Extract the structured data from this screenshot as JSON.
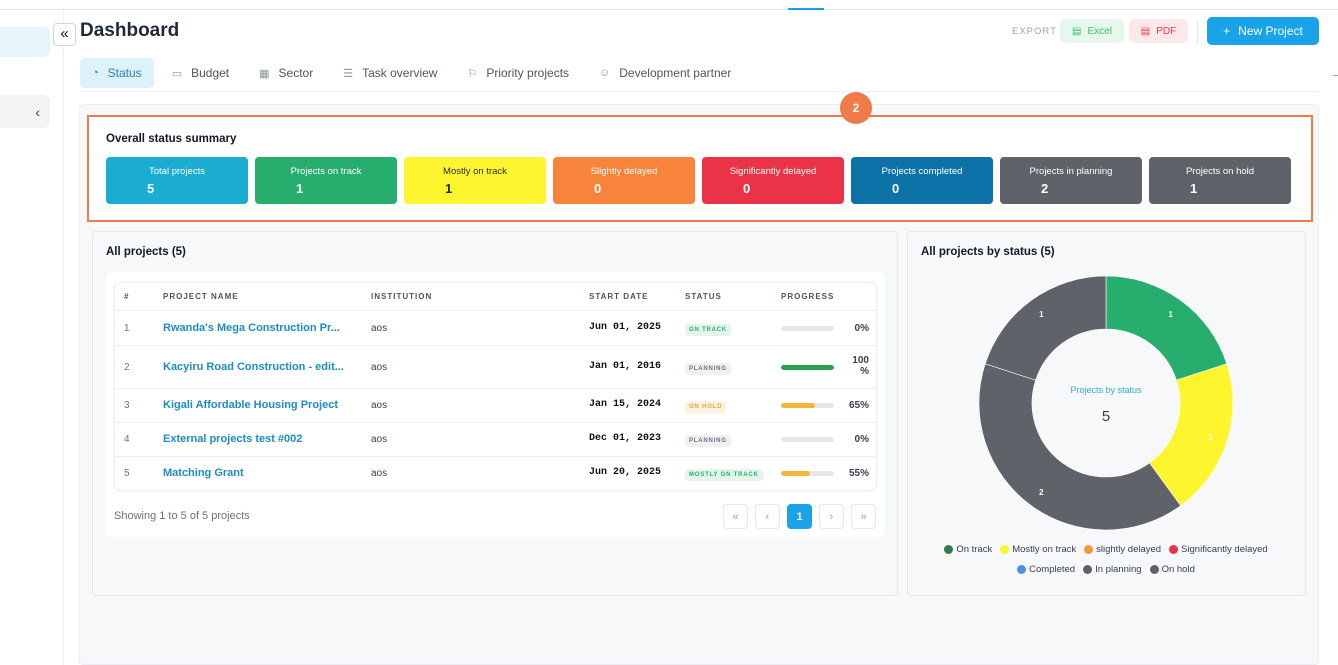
{
  "header": {
    "title": "Dashboard",
    "export_label": "EXPORT",
    "excel_label": "Excel",
    "pdf_label": "PDF",
    "new_project_label": "New Project",
    "collapse_icon": "double-chevron-left-icon"
  },
  "tabs": [
    {
      "label": "Status",
      "icon": "pie-icon",
      "active": true
    },
    {
      "label": "Budget",
      "icon": "wallet-icon"
    },
    {
      "label": "Sector",
      "icon": "grid-icon"
    },
    {
      "label": "Task overview",
      "icon": "list-icon"
    },
    {
      "label": "Priority projects",
      "icon": "flag-icon"
    },
    {
      "label": "Development partner",
      "icon": "users-icon"
    }
  ],
  "summary": {
    "badge": "2",
    "title": "Overall status summary",
    "cards": [
      {
        "label": "Total projects",
        "value": "5",
        "color": "#1badd1"
      },
      {
        "label": "Projects on track",
        "value": "1",
        "color": "#27ae6e"
      },
      {
        "label": "Mostly on track",
        "value": "1",
        "color": "#fdf62f"
      },
      {
        "label": "Slightly delayed",
        "value": "0",
        "color": "#f7843a"
      },
      {
        "label": "Significantly delayed",
        "value": "0",
        "color": "#eb3347"
      },
      {
        "label": "Projects completed",
        "value": "0",
        "color": "#0c72a8"
      },
      {
        "label": "Projects in planning",
        "value": "2",
        "color": "#5f6268"
      },
      {
        "label": "Projects on hold",
        "value": "1",
        "color": "#5f6268"
      }
    ]
  },
  "projects": {
    "title": "All projects (5)",
    "columns": [
      "#",
      "PROJECT NAME",
      "INSTITUTION",
      "START DATE",
      "STATUS",
      "PROGRESS"
    ],
    "rows": [
      {
        "num": "1",
        "name": "Rwanda's Mega Construction Pr...",
        "institution": "aos",
        "start": "Jun 01, 2025",
        "status": "ON TRACK",
        "status_bg": "#e4f6ec",
        "status_fg": "#27ae6e",
        "progress": 0,
        "bar": "#27ae6e",
        "pct": "0%"
      },
      {
        "num": "2",
        "name": "Kacyiru Road Construction - edit...",
        "institution": "aos",
        "start": "Jan 01, 2016",
        "status": "PLANNING",
        "status_bg": "#eef0f2",
        "status_fg": "#6b7280",
        "progress": 100,
        "bar": "#2aa052",
        "pct": "100 %"
      },
      {
        "num": "3",
        "name": "Kigali Affordable Housing Project",
        "institution": "aos",
        "start": "Jan 15, 2024",
        "status": "ON HOLD",
        "status_bg": "#fdf1e2",
        "status_fg": "#f0a13c",
        "progress": 65,
        "bar": "#f5b43a",
        "pct": "65%"
      },
      {
        "num": "4",
        "name": "External projects test #002",
        "institution": "aos",
        "start": "Dec 01, 2023",
        "status": "PLANNING",
        "status_bg": "#eef0f2",
        "status_fg": "#6b7280",
        "progress": 0,
        "bar": "#27ae6e",
        "pct": "0%"
      },
      {
        "num": "5",
        "name": "Matching Grant",
        "institution": "aos",
        "start": "Jun 20, 2025",
        "status": "MOSTLY ON TRACK",
        "status_bg": "#e4f6ec",
        "status_fg": "#27ae6e",
        "progress": 55,
        "bar": "#f5b43a",
        "pct": "55%"
      }
    ],
    "showing": "Showing 1 to 5 of 5 projects",
    "pager": {
      "first": "«",
      "prev": "‹",
      "current": "1",
      "next": "›",
      "last": "»"
    }
  },
  "chart_data": {
    "type": "pie",
    "title": "All projects by status (5)",
    "center_label": "Projects by status",
    "center_value": "5",
    "slices": [
      {
        "name": "On track",
        "value": 1,
        "color": "#27ae6e"
      },
      {
        "name": "Mostly on track",
        "value": 1,
        "color": "#fdf62f"
      },
      {
        "name": "slightly delayed",
        "value": 0,
        "color": "#f7963a"
      },
      {
        "name": "Significantly delayed",
        "value": 0,
        "color": "#eb3347"
      },
      {
        "name": "Completed",
        "value": 0,
        "color": "#4a90e2"
      },
      {
        "name": "In planning",
        "value": 2,
        "color": "#5f6268"
      },
      {
        "name": "On hold",
        "value": 1,
        "color": "#5f6268"
      }
    ],
    "legend_placement": "bottom",
    "legend": [
      {
        "name": "On track",
        "color": "#2f7d4e"
      },
      {
        "name": "Mostly on track",
        "color": "#fdf62f"
      },
      {
        "name": "slightly delayed",
        "color": "#f7963a"
      },
      {
        "name": "Significantly delayed",
        "color": "#eb3347"
      },
      {
        "name": "Completed",
        "color": "#4a90e2"
      },
      {
        "name": "In planning",
        "color": "#5f6268"
      },
      {
        "name": "On hold",
        "color": "#5f6268"
      }
    ],
    "donut_slices_drawn": [
      {
        "name": "On track",
        "value": 1,
        "color": "#27ae6e",
        "label": "1"
      },
      {
        "name": "Mostly on track",
        "value": 1,
        "color": "#fdf62f",
        "label": "1"
      },
      {
        "name": "In planning",
        "value": 2,
        "color": "#5f6268",
        "label": "2"
      },
      {
        "name": "On hold",
        "value": 1,
        "color": "#5f6268",
        "label": "1"
      }
    ]
  }
}
